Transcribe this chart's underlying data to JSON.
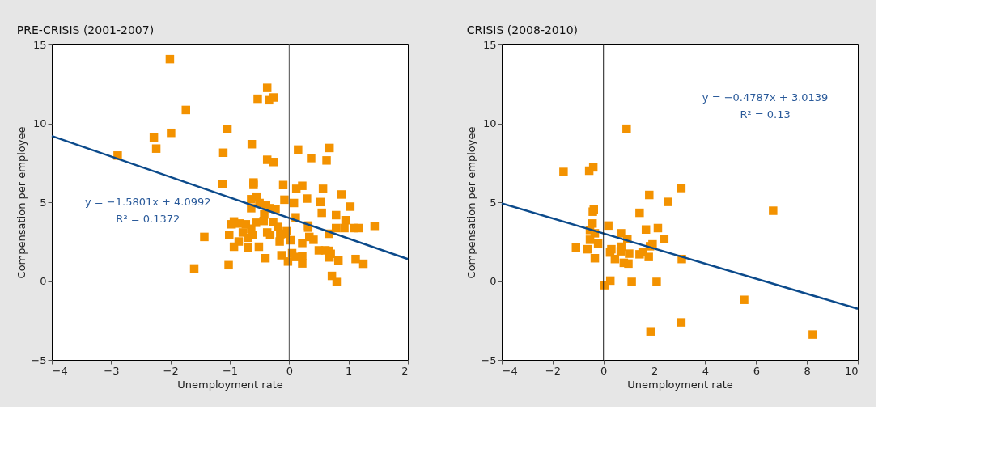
{
  "chart_data": [
    {
      "type": "scatter",
      "title": "PRE-CRISIS (2001-2007)",
      "xlabel": "Unemployment rate",
      "ylabel": "Compensation per employee",
      "xlim": [
        -4,
        2
      ],
      "xticks": [
        -4,
        -3,
        -2,
        -1,
        0,
        1,
        2
      ],
      "ylim": [
        -5,
        15
      ],
      "yticks": [
        -5,
        0,
        5,
        10,
        15
      ],
      "grid": false,
      "series": [
        {
          "color": "#f39200",
          "marker": "square",
          "x": [
            -2.89,
            -2.01,
            -1.74,
            -2.28,
            -2.24,
            -1.99,
            -1.43,
            -1.6,
            -1.04,
            -1.11,
            -1.12,
            -1.02,
            -0.37,
            -0.53,
            -0.34,
            -0.26,
            -0.63,
            -0.37,
            -0.26,
            0.15,
            0.37,
            0.68,
            0.63,
            -0.6,
            -0.6,
            -0.1,
            0.12,
            0.22,
            0.57,
            0.88,
            0.3,
            0.53,
            1.03,
            -0.08,
            0.08,
            0.55,
            0.79,
            0.95,
            0.11,
            1.44,
            1.09,
            1.17,
            0.93,
            0.79,
            0.32,
            0.32,
            0.67,
            0.34,
            0.41,
            0.22,
            0.5,
            0.61,
            0.67,
            0.7,
            0.68,
            0.83,
            1.12,
            1.25,
            0.72,
            0.8,
            -0.13,
            -0.02,
            0.05,
            0.11,
            0.22,
            0.22,
            -0.06,
            0.02,
            -0.04,
            -0.15,
            -0.16,
            -0.93,
            -0.97,
            -0.84,
            -0.73,
            -1.01,
            -0.85,
            -0.93,
            -0.78,
            -0.69,
            -0.69,
            -0.62,
            -0.64,
            -0.56,
            -0.43,
            -0.42,
            -0.51,
            -0.4,
            -0.37,
            -0.32,
            -0.27,
            -0.19,
            -0.23,
            -0.39,
            -0.64,
            -0.64,
            -0.55,
            -0.5,
            -0.33
          ],
          "values": [
            7.96,
            14.07,
            10.85,
            9.1,
            8.4,
            9.4,
            2.8,
            0.8,
            9.65,
            8.14,
            6.14,
            1.01,
            12.25,
            11.56,
            11.47,
            11.64,
            8.68,
            7.69,
            7.55,
            8.34,
            7.8,
            8.44,
            7.65,
            6.25,
            6.1,
            6.09,
            5.85,
            6.04,
            5.85,
            5.49,
            5.23,
            5.01,
            4.72,
            5.16,
            4.95,
            4.33,
            4.18,
            3.86,
            4.04,
            3.5,
            3.36,
            3.36,
            3.36,
            3.36,
            3.52,
            3.39,
            3.0,
            2.8,
            2.62,
            2.42,
            1.95,
            1.95,
            1.92,
            1.73,
            1.5,
            1.3,
            1.4,
            1.1,
            0.33,
            -0.06,
            1.64,
            1.24,
            1.77,
            1.53,
            1.58,
            1.12,
            3.0,
            2.59,
            3.16,
            2.92,
            2.51,
            3.78,
            3.6,
            3.65,
            3.6,
            2.92,
            2.51,
            2.18,
            3.08,
            2.13,
            2.75,
            2.92,
            3.32,
            3.7,
            3.81,
            4.22,
            2.18,
            1.45,
            3.08,
            2.92,
            3.73,
            3.43,
            4.57,
            4.79,
            4.62,
            5.19,
            5.35,
            4.95,
            4.62
          ]
        },
        {
          "type": "line",
          "color": "#0b4a8b",
          "x": [
            -4,
            2
          ],
          "values": [
            9.2,
            1.4
          ]
        }
      ],
      "ref_lines": [
        {
          "axis": "x",
          "value": 0,
          "color": "#4d4d4d"
        },
        {
          "axis": "y",
          "value": 0,
          "color": "#000000"
        }
      ],
      "annotations": [
        "y = −1.5801x + 4.0992",
        "R² = 0.1372"
      ]
    },
    {
      "type": "scatter",
      "title": "CRISIS (2008-2010)",
      "xlabel": "Unemployment rate",
      "ylabel": "Compensation per employee",
      "xlim": [
        -4,
        10
      ],
      "xticks": [
        -4,
        -2,
        0,
        2,
        4,
        6,
        8,
        10
      ],
      "ylim": [
        -5,
        15
      ],
      "yticks": [
        -5,
        0,
        5,
        10,
        15
      ],
      "grid": false,
      "series": [
        {
          "color": "#f39200",
          "marker": "square",
          "x": [
            0.91,
            -1.57,
            -0.56,
            -0.4,
            1.8,
            2.54,
            3.06,
            -0.42,
            -0.38,
            1.42,
            0.19,
            -0.43,
            -0.53,
            -0.34,
            1.67,
            2.14,
            2.39,
            0.69,
            0.94,
            -0.53,
            -0.21,
            -1.08,
            -0.63,
            -0.34,
            0.31,
            0.26,
            0.7,
            0.68,
            1.01,
            0.45,
            0.8,
            0.98,
            1.42,
            1.54,
            1.78,
            1.83,
            1.93,
            3.08,
            0.05,
            0.27,
            1.11,
            2.09,
            1.85,
            3.06,
            6.67,
            5.53,
            8.23
          ],
          "values": [
            9.66,
            6.92,
            7.0,
            7.21,
            5.46,
            5.02,
            5.9,
            4.4,
            4.53,
            4.33,
            3.52,
            3.65,
            3.24,
            3.03,
            3.27,
            3.36,
            2.67,
            3.03,
            2.67,
            2.62,
            2.38,
            2.13,
            2.02,
            1.45,
            2.02,
            1.81,
            2.18,
            1.89,
            1.74,
            1.4,
            1.16,
            1.11,
            1.7,
            1.86,
            1.53,
            2.21,
            2.33,
            1.4,
            -0.26,
            0.03,
            -0.05,
            -0.05,
            -3.19,
            -2.62,
            4.46,
            -1.19,
            -3.39
          ]
        },
        {
          "type": "line",
          "color": "#0b4a8b",
          "x": [
            -4,
            10
          ],
          "values": [
            4.93,
            -1.76
          ]
        }
      ],
      "ref_lines": [
        {
          "axis": "x",
          "value": 0,
          "color": "#1a1a1a"
        },
        {
          "axis": "y",
          "value": 0,
          "color": "#000000"
        }
      ],
      "annotations": [
        "y = −0.4787x + 3.0139",
        "R² = 0.13"
      ]
    }
  ]
}
